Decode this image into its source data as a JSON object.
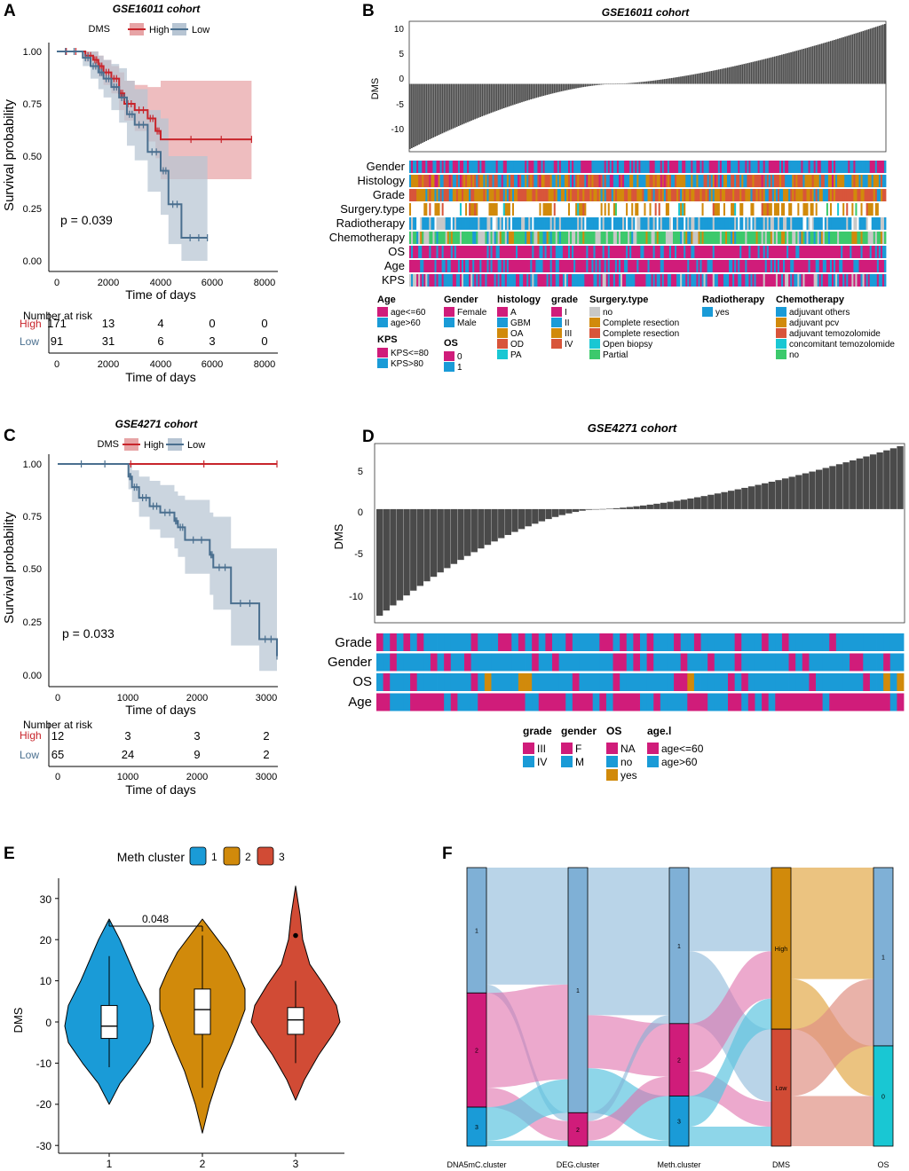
{
  "colors": {
    "high": "#c8242b",
    "low": "#4a6f8f",
    "high_band": "#e7a4a6",
    "low_band": "#b7c5d3",
    "bar": "#4a4a4a",
    "pink": "#d01c7a",
    "blue": "#1a9bd7",
    "orange": "#d18a0b",
    "red": "#d8553a",
    "cyan": "#19c7d3",
    "green": "#3cc96c",
    "gray": "#c8c8c8",
    "flow_blue": "#7fb0d6",
    "flow_pink": "#df6fab",
    "flow_cyan": "#5ec5e0",
    "flow_orange": "#e8b86a",
    "flow_red": "#df9184",
    "vio1": "#1a9bd7",
    "vio2": "#d18a0b",
    "vio3": "#d14b35"
  },
  "panels": {
    "A": {
      "letter": "A",
      "title": "GSE16011 cohort",
      "legend_title": "DMS",
      "legend_high": "High",
      "legend_low": "Low",
      "ylabel": "Survival probability",
      "xlabel": "Time of days",
      "yticks": [
        "1.00",
        "0.75",
        "0.50",
        "0.25",
        "0.00"
      ],
      "xticks": [
        "0",
        "2000",
        "4000",
        "6000",
        "8000"
      ],
      "pvalue": "p = 0.039",
      "risk_title": "Number at risk",
      "risk_high_label": "High",
      "risk_low_label": "Low",
      "risk_high": [
        "171",
        "13",
        "4",
        "0",
        "0"
      ],
      "risk_low": [
        "91",
        "31",
        "6",
        "3",
        "0"
      ],
      "risk_xticks": [
        "0",
        "2000",
        "4000",
        "6000",
        "8000"
      ],
      "risk_xlabel": "Time of days"
    },
    "B": {
      "letter": "B",
      "title": "GSE16011 cohort",
      "ylabel": "DMS",
      "yticks": [
        "10",
        "5",
        "0",
        "-5",
        "-10"
      ],
      "rows": [
        "Gender",
        "Histology",
        "Grade",
        "Surgery.type",
        "Radiotherapy",
        "Chemotherapy",
        "OS",
        "Age",
        "KPS"
      ],
      "legend": {
        "age_title": "Age",
        "age": [
          "age<=60",
          "age>60"
        ],
        "kps_title": "KPS",
        "kps": [
          "KPS<=80",
          "KPS>80"
        ],
        "gender_title": "Gender",
        "gender": [
          "Female",
          "Male"
        ],
        "os_title": "OS",
        "os": [
          "0",
          "1"
        ],
        "histology_title": "histology",
        "histology": [
          "A",
          "GBM",
          "OA",
          "OD",
          "PA"
        ],
        "grade_title": "grade",
        "grade": [
          "I",
          "II",
          "III",
          "IV"
        ],
        "surgery_title": "Surgery.type",
        "surgery": [
          "no",
          "Complete resection",
          "Complete resection",
          "Open biopsy",
          "Partial"
        ],
        "radio_title": "Radiotherapy",
        "radio": [
          "yes"
        ],
        "chemo_title": "Chemotherapy",
        "chemo": [
          "adjuvant others",
          "adjuvant pcv",
          "adjuvant temozolomide",
          "concomitant temozolomide",
          "no"
        ]
      }
    },
    "C": {
      "letter": "C",
      "title": "GSE4271 cohort",
      "legend_title": "DMS",
      "legend_high": "High",
      "legend_low": "Low",
      "ylabel": "Survival probability",
      "xlabel": "Time of days",
      "yticks": [
        "1.00",
        "0.75",
        "0.50",
        "0.25",
        "0.00"
      ],
      "xticks": [
        "0",
        "1000",
        "2000",
        "3000"
      ],
      "pvalue": "p = 0.033",
      "risk_title": "Number at risk",
      "risk_high_label": "High",
      "risk_low_label": "Low",
      "risk_high": [
        "12",
        "3",
        "3",
        "2"
      ],
      "risk_low": [
        "65",
        "24",
        "9",
        "2"
      ],
      "risk_xticks": [
        "0",
        "1000",
        "2000",
        "3000"
      ],
      "risk_xlabel": "Time of days"
    },
    "D": {
      "letter": "D",
      "title": "GSE4271 cohort",
      "ylabel": "DMS",
      "yticks": [
        "5",
        "0",
        "-5",
        "-10"
      ],
      "rows": [
        "Grade",
        "Gender",
        "OS",
        "Age"
      ],
      "legend": {
        "grade_title": "grade",
        "grade": [
          "III",
          "IV"
        ],
        "gender_title": "gender",
        "gender": [
          "F",
          "M"
        ],
        "os_title": "OS",
        "os": [
          "NA",
          "no",
          "yes"
        ],
        "age_title": "age.l",
        "age": [
          "age<=60",
          "age>60"
        ]
      }
    },
    "E": {
      "letter": "E",
      "legend_title": "Meth cluster",
      "legend_items": [
        "1",
        "2",
        "3"
      ],
      "ylabel": "DMS",
      "yticks": [
        "30",
        "20",
        "10",
        "0",
        "-10",
        "-20",
        "-30"
      ],
      "xticks": [
        "1",
        "2",
        "3"
      ],
      "comparison_p": "0.048"
    },
    "F": {
      "letter": "F",
      "axes": [
        "DNA5mC.cluster",
        "DEG.cluster",
        "Meth.cluster",
        "DMS",
        "OS"
      ],
      "strata": {
        "DNA5mC.cluster": [
          "1",
          "2",
          "3"
        ],
        "DEG.cluster": [
          "1",
          "2"
        ],
        "Meth.cluster": [
          "1",
          "2",
          "3"
        ],
        "DMS": [
          "High",
          "Low"
        ],
        "OS": [
          "1",
          "0"
        ]
      }
    }
  },
  "chart_data": [
    {
      "type": "line",
      "panel": "A",
      "title": "GSE16011 cohort",
      "xlabel": "Time of days",
      "ylabel": "Survival probability",
      "xlim": [
        0,
        8000
      ],
      "ylim": [
        0,
        1
      ],
      "series": [
        {
          "name": "High",
          "x": [
            0,
            1100,
            1400,
            1600,
            1800,
            2100,
            2400,
            2600,
            3000,
            3500,
            3800,
            4000,
            7500
          ],
          "y": [
            1.0,
            0.98,
            0.96,
            0.93,
            0.9,
            0.87,
            0.8,
            0.75,
            0.72,
            0.68,
            0.62,
            0.58,
            0.58
          ],
          "ci_low": [
            1.0,
            0.95,
            0.92,
            0.88,
            0.84,
            0.8,
            0.72,
            0.67,
            0.62,
            0.57,
            0.49,
            0.39,
            0.39
          ],
          "ci_high": [
            1.0,
            1.0,
            1.0,
            0.98,
            0.96,
            0.93,
            0.9,
            0.86,
            0.84,
            0.83,
            0.83,
            0.86,
            0.86
          ]
        },
        {
          "name": "Low",
          "x": [
            0,
            1000,
            1300,
            1600,
            1800,
            2100,
            2400,
            2700,
            3000,
            3500,
            4000,
            4300,
            4800,
            5800
          ],
          "y": [
            1.0,
            0.97,
            0.93,
            0.9,
            0.87,
            0.83,
            0.78,
            0.7,
            0.65,
            0.52,
            0.43,
            0.27,
            0.11,
            0.11
          ],
          "ci_low": [
            1.0,
            0.93,
            0.87,
            0.82,
            0.78,
            0.72,
            0.66,
            0.55,
            0.48,
            0.33,
            0.22,
            0.08,
            0.0,
            0.0
          ],
          "ci_high": [
            1.0,
            1.0,
            1.0,
            0.98,
            0.96,
            0.94,
            0.92,
            0.86,
            0.82,
            0.72,
            0.68,
            0.5,
            0.5,
            0.5
          ]
        }
      ],
      "pvalue": 0.039
    },
    {
      "type": "bar",
      "panel": "B",
      "title": "GSE16011 cohort",
      "ylabel": "DMS",
      "ylim": [
        -13,
        12
      ],
      "n_samples": 264,
      "min": -12.5,
      "max": 11.5,
      "zero_crossing_fraction": 0.43
    },
    {
      "type": "line",
      "panel": "C",
      "title": "GSE4271 cohort",
      "xlabel": "Time of days",
      "ylabel": "Survival probability",
      "xlim": [
        0,
        3100
      ],
      "ylim": [
        0,
        1
      ],
      "series": [
        {
          "name": "High",
          "x": [
            0,
            3100
          ],
          "y": [
            1.0,
            1.0
          ],
          "ci_low": [
            1.0,
            1.0
          ],
          "ci_high": [
            1.0,
            1.0
          ]
        },
        {
          "name": "Low",
          "x": [
            0,
            1000,
            1050,
            1150,
            1300,
            1450,
            1650,
            1700,
            1800,
            2150,
            2200,
            2450,
            2850,
            3100
          ],
          "y": [
            1.0,
            0.94,
            0.89,
            0.84,
            0.8,
            0.77,
            0.73,
            0.7,
            0.64,
            0.57,
            0.51,
            0.34,
            0.17,
            0.09
          ],
          "ci_low": [
            1.0,
            0.88,
            0.82,
            0.75,
            0.69,
            0.65,
            0.6,
            0.56,
            0.48,
            0.38,
            0.31,
            0.14,
            0.02,
            0.02
          ],
          "ci_high": [
            1.0,
            1.0,
            0.97,
            0.94,
            0.92,
            0.9,
            0.87,
            0.85,
            0.83,
            0.77,
            0.75,
            0.6,
            0.6,
            0.6
          ]
        }
      ],
      "pvalue": 0.033
    },
    {
      "type": "bar",
      "panel": "D",
      "title": "GSE4271 cohort",
      "ylabel": "DMS",
      "ylim": [
        -13,
        7.5
      ],
      "n_samples": 78,
      "min": -12.2,
      "max": 7.2
    },
    {
      "type": "violin",
      "panel": "E",
      "ylabel": "DMS",
      "ylim": [
        -30,
        33
      ],
      "categories": [
        "1",
        "2",
        "3"
      ],
      "series": [
        {
          "name": "1",
          "min": -11,
          "q1": -4,
          "median": -1,
          "q3": 4,
          "max": 16,
          "range": [
            -20,
            25
          ]
        },
        {
          "name": "2",
          "min": -16,
          "q1": -3,
          "median": 3,
          "q3": 8,
          "max": 21,
          "range": [
            -27,
            25
          ]
        },
        {
          "name": "3",
          "min": -10,
          "q1": -3,
          "median": 0.5,
          "q3": 3.5,
          "max": 10,
          "outlier": 21,
          "range": [
            -19,
            33
          ]
        }
      ],
      "comparisons": [
        {
          "groups": [
            "1",
            "2"
          ],
          "p": 0.048
        }
      ]
    },
    {
      "type": "sankey",
      "panel": "F",
      "axes": [
        "DNA5mC.cluster",
        "DEG.cluster",
        "Meth.cluster",
        "DMS",
        "OS"
      ],
      "stratum_fractions": {
        "DNA5mC.cluster": [
          0.45,
          0.41,
          0.14
        ],
        "DEG.cluster": [
          0.88,
          0.12
        ],
        "Meth.cluster": [
          0.56,
          0.26,
          0.18
        ],
        "DMS": [
          0.58,
          0.42
        ],
        "OS": [
          0.64,
          0.36
        ]
      }
    }
  ]
}
